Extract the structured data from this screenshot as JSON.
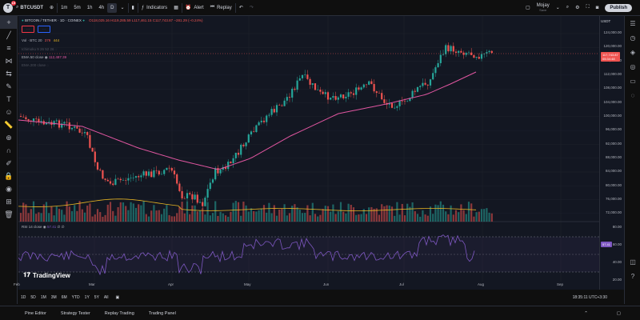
{
  "header": {
    "symbol": "BTCUSDT",
    "intervals": [
      "1m",
      "5m",
      "1h",
      "4h",
      "D"
    ],
    "indicators_label": "Indicators",
    "alert_label": "Alert",
    "replay_label": "Replay",
    "layout_name": "Mojay",
    "layout_sub": "Save",
    "publish_label": "Publish",
    "logo_letter": "T",
    "notification_count": "15"
  },
  "legend": {
    "title": "BITCOIN / TETHER · 1D · COINEX",
    "ohlc": "O118,025.16 H119,285.59 L117,461.15 C117,743.87 −281.29 (−0.24%)",
    "vol": "Vol · BTC 20",
    "vol_val1": "379",
    "vol_val2": "444",
    "ichimoku": "Ichimoku 9 26 52 26",
    "ema50": "EMA 50 close",
    "ema50_val": "112,487.39",
    "ema200": "EMA 200 close"
  },
  "price_axis": {
    "currency": "USDT",
    "labels": [
      "124,000.00",
      "120,000.00",
      "116,000.00",
      "112,000.00",
      "108,000.00",
      "104,000.00",
      "100,000.00",
      "96,000.00",
      "92,000.00",
      "88,000.00",
      "84,000.00",
      "80,000.00",
      "76,000.00",
      "72,000.00"
    ],
    "current_price": "117,743.87",
    "countdown": "05:34:48",
    "rsi_labels": [
      "80.00",
      "60.00",
      "40.00",
      "20.00"
    ],
    "rsi_current": "57.41"
  },
  "rsi": {
    "label": "RSI 14 close",
    "value": "57.41"
  },
  "time_axis": [
    "Feb",
    "Mar",
    "Apr",
    "May",
    "Jun",
    "Jul",
    "Aug",
    "Sep"
  ],
  "bottom": {
    "ranges": [
      "1D",
      "5D",
      "1M",
      "3M",
      "6M",
      "YTD",
      "1Y",
      "5Y",
      "All"
    ],
    "clock": "18:35:11 UTC+3:30"
  },
  "panels": [
    "Pine Editor",
    "Strategy Tester",
    "Replay Trading",
    "Trading Panel"
  ],
  "brand": "TradingView",
  "colors": {
    "up": "#26a69a",
    "down": "#ef5350",
    "ema50": "#e056a0",
    "ema200": "#e6b422",
    "rsi": "#7e57c2"
  },
  "chart_data": {
    "type": "candlestick",
    "title": "BITCOIN / TETHER · 1D · COINEX",
    "x": [
      "Feb",
      "Mar",
      "Apr",
      "May",
      "Jun",
      "Jul",
      "Aug",
      "Sep"
    ],
    "ylim": [
      70000,
      126000
    ],
    "close_last": 117743.87,
    "ema50_last": 112487.39,
    "rsi_last": 57.41
  }
}
